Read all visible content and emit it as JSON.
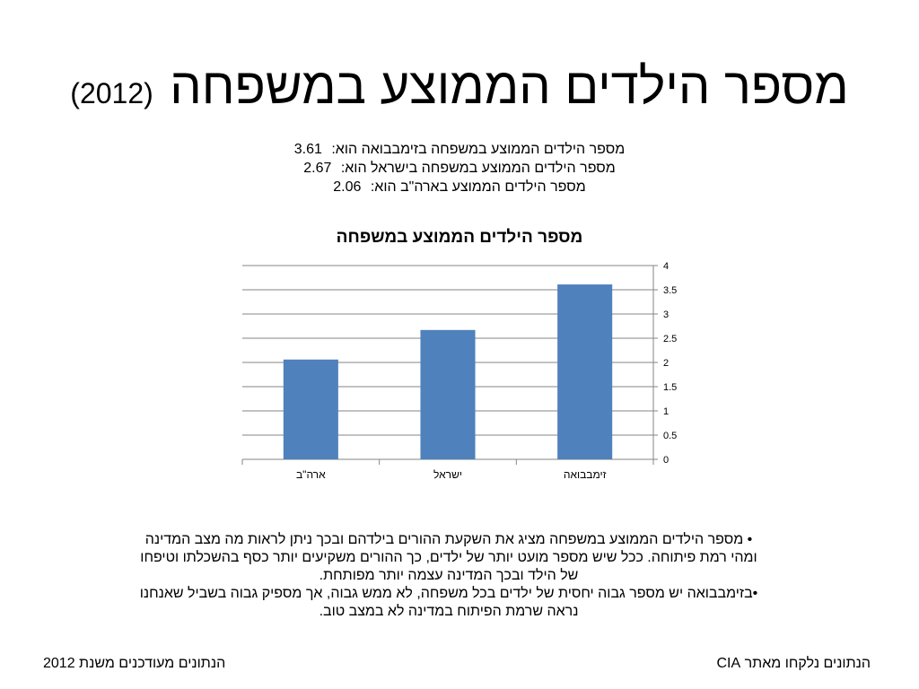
{
  "slide": {
    "title": "מספר הילדים הממוצע במשפחה",
    "year": "(2012)",
    "facts": [
      {
        "label": "מספר הילדים הממוצע במשפחה בזימבבואה הוא:",
        "value": "3.61"
      },
      {
        "label": "מספר הילדים הממוצע במשפחה בישראל הוא:",
        "value": "2.67"
      },
      {
        "label": "מספר הילדים הממוצע בארה\"ב הוא:",
        "value": "2.06"
      }
    ],
    "bullets": [
      "• מספר הילדים הממוצע במשפחה מציג את השקעת ההורים בילדהם ובכך ניתן לראות מה מצב המדינה ומהי רמת פיתוחה. ככל שיש מספר מועט יותר של ילדים, כך ההורים משקיעים יותר כסף בהשכלתו וטיפחו של הילד ובכך המדינה עצמה יותר מפותחת.",
      "•בזימבבואה יש מספר גבוה יחסית של ילדים בכל משפחה, לא ממש גבוה, אך מספיק גבוה בשביל שאנחנו נראה שרמת הפיתוח במדינה לא במצב טוב."
    ],
    "footer_left": "הנתונים מעודכנים משנת 2012",
    "footer_right": "הנתונים נלקחו מאתר CIA"
  },
  "chart_data": {
    "type": "bar",
    "title": "מספר הילדים הממוצע במשפחה",
    "categories": [
      "ארה\"ב",
      "ישראל",
      "זימבבואה"
    ],
    "values": [
      2.06,
      2.67,
      3.61
    ],
    "ylim": [
      0,
      4
    ],
    "yticks": [
      "0",
      "0.5",
      "1",
      "1.5",
      "2",
      "2.5",
      "3",
      "3.5",
      "4"
    ],
    "y_axis_side": "right",
    "grid": true,
    "bar_color": "#4F81BD"
  }
}
